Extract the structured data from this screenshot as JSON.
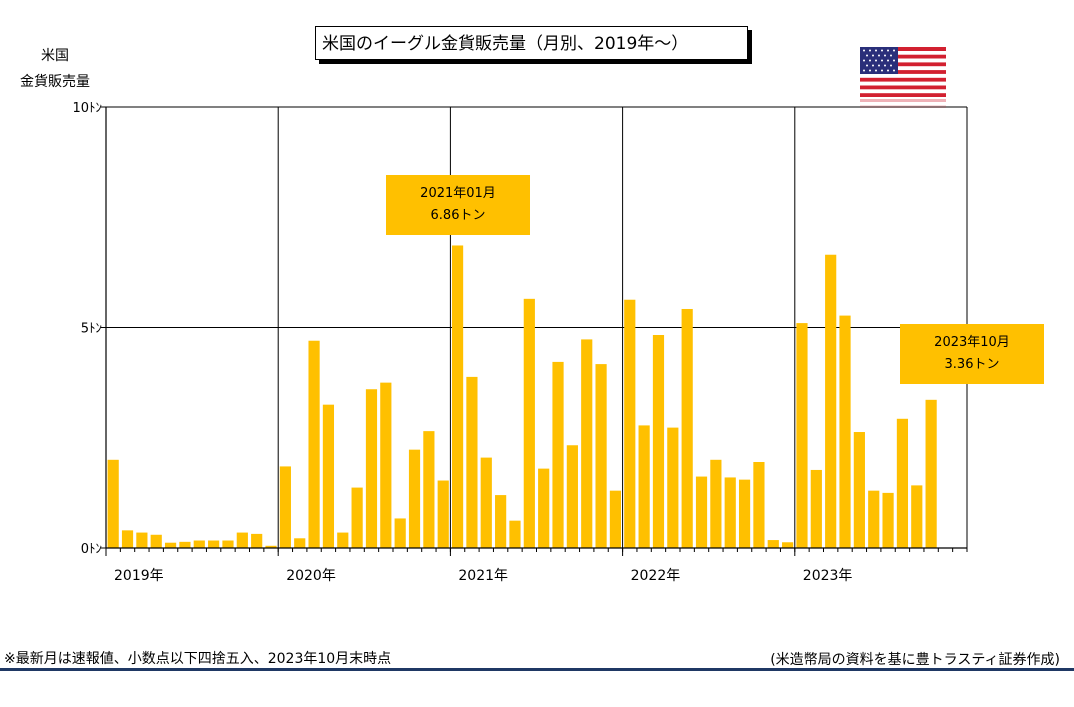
{
  "title": "米国のイーグル金貨販売量（月別、2019年～）",
  "y_axis_label_line1": "米国",
  "y_axis_label_line2": "金貨販売量",
  "note": "※最新月は速報値、小数点以下四捨五入、2023年10月末時点",
  "source": "(米造幣局の資料を基に豊トラスティ証券作成)",
  "flag_icon": "us-flag-icon",
  "colors": {
    "bar": "#FFC000",
    "callout": "#FFC000",
    "footer_line": "#1F3864"
  },
  "callouts": [
    {
      "line1": "2021年01月",
      "line2": "6.86トン"
    },
    {
      "line1": "2023年10月",
      "line2": "3.36トン"
    }
  ],
  "chart_data": {
    "type": "bar",
    "title": "米国のイーグル金貨販売量（月別、2019年～）",
    "ylabel": "米国 金貨販売量",
    "xlabel": "",
    "ylim": [
      0,
      10
    ],
    "yticks": [
      {
        "value": 0,
        "label": "0ﾄﾝ"
      },
      {
        "value": 5,
        "label": "5ﾄﾝ"
      },
      {
        "value": 10,
        "label": "10ﾄﾝ"
      }
    ],
    "year_labels": [
      "2019年",
      "2020年",
      "2021年",
      "2022年",
      "2023年"
    ],
    "grid": true,
    "legend": "none",
    "categories": [
      "2019-01",
      "2019-02",
      "2019-03",
      "2019-04",
      "2019-05",
      "2019-06",
      "2019-07",
      "2019-08",
      "2019-09",
      "2019-10",
      "2019-11",
      "2019-12",
      "2020-01",
      "2020-02",
      "2020-03",
      "2020-04",
      "2020-05",
      "2020-06",
      "2020-07",
      "2020-08",
      "2020-09",
      "2020-10",
      "2020-11",
      "2020-12",
      "2021-01",
      "2021-02",
      "2021-03",
      "2021-04",
      "2021-05",
      "2021-06",
      "2021-07",
      "2021-08",
      "2021-09",
      "2021-10",
      "2021-11",
      "2021-12",
      "2022-01",
      "2022-02",
      "2022-03",
      "2022-04",
      "2022-05",
      "2022-06",
      "2022-07",
      "2022-08",
      "2022-09",
      "2022-10",
      "2022-11",
      "2022-12",
      "2023-01",
      "2023-02",
      "2023-03",
      "2023-04",
      "2023-05",
      "2023-06",
      "2023-07",
      "2023-08",
      "2023-09",
      "2023-10"
    ],
    "values": [
      2.0,
      0.4,
      0.35,
      0.3,
      0.12,
      0.14,
      0.17,
      0.17,
      0.17,
      0.35,
      0.32,
      0.05,
      1.85,
      0.22,
      4.7,
      3.25,
      0.35,
      1.37,
      3.6,
      3.75,
      0.67,
      2.23,
      2.65,
      1.53,
      6.86,
      3.88,
      2.05,
      1.2,
      0.62,
      5.65,
      1.8,
      4.22,
      2.33,
      4.73,
      4.17,
      1.3,
      5.63,
      2.78,
      4.83,
      2.73,
      5.42,
      1.62,
      2.0,
      1.6,
      1.55,
      1.95,
      0.18,
      0.13,
      5.1,
      1.77,
      6.65,
      5.27,
      2.63,
      1.3,
      1.25,
      2.93,
      1.42,
      3.36
    ]
  }
}
